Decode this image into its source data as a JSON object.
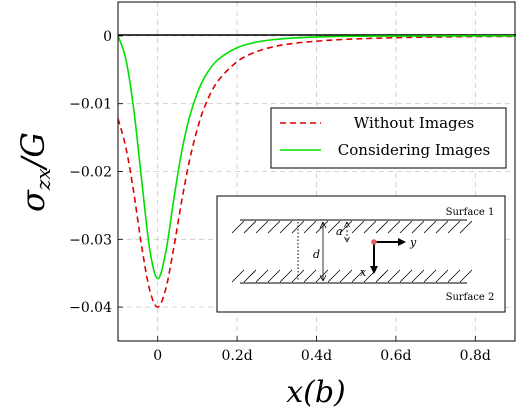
{
  "chart_data": {
    "type": "line",
    "xlabel": "x(b)",
    "ylabel": "σzx/G",
    "xlim": [
      -0.1,
      0.9
    ],
    "ylim": [
      -0.045,
      0.005
    ],
    "x_ticks": [
      {
        "value": 0,
        "label": "0"
      },
      {
        "value": 0.2,
        "label": "0.2d"
      },
      {
        "value": 0.4,
        "label": "0.4d"
      },
      {
        "value": 0.6,
        "label": "0.6d"
      },
      {
        "value": 0.8,
        "label": "0.8d"
      }
    ],
    "y_ticks": [
      {
        "value": 0,
        "label": "0"
      },
      {
        "value": -0.01,
        "label": "−0.01"
      },
      {
        "value": -0.02,
        "label": "−0.02"
      },
      {
        "value": -0.03,
        "label": "−0.03"
      },
      {
        "value": -0.04,
        "label": "−0.04"
      }
    ],
    "grid": true,
    "legend_position": "right",
    "series": [
      {
        "name": "Without Images",
        "color": "#e00000",
        "style": "dashed",
        "x": [
          -0.1,
          -0.08,
          -0.06,
          -0.04,
          -0.02,
          0,
          0.02,
          0.04,
          0.06,
          0.08,
          0.1,
          0.12,
          0.15,
          0.2,
          0.25,
          0.3,
          0.35,
          0.4,
          0.45,
          0.5,
          0.55,
          0.6,
          0.7,
          0.8,
          0.9
        ],
        "y": [
          -0.0122,
          -0.0165,
          -0.0232,
          -0.0312,
          -0.0375,
          -0.04,
          -0.0374,
          -0.0314,
          -0.0245,
          -0.0184,
          -0.0137,
          -0.0102,
          -0.0068,
          -0.0038,
          -0.0023,
          -0.0015,
          -0.00105,
          -0.00078,
          -0.00058,
          -0.00044,
          -0.00034,
          -0.00026,
          -0.00016,
          -0.0001,
          -7e-05
        ]
      },
      {
        "name": "Considering Images",
        "color": "#00e000",
        "style": "solid",
        "x": [
          -0.1,
          -0.08,
          -0.06,
          -0.04,
          -0.02,
          0,
          0.02,
          0.04,
          0.06,
          0.08,
          0.1,
          0.12,
          0.15,
          0.2,
          0.25,
          0.3,
          0.35,
          0.4,
          0.45,
          0.5,
          0.55,
          0.6,
          0.7,
          0.8,
          0.9
        ],
        "y": [
          0,
          -0.0035,
          -0.011,
          -0.0215,
          -0.0315,
          -0.0358,
          -0.032,
          -0.0243,
          -0.0172,
          -0.012,
          -0.0084,
          -0.0059,
          -0.0036,
          -0.00175,
          -0.0009,
          -0.0005,
          -0.00028,
          -0.00016,
          -9e-05,
          -5e-05,
          -3e-05,
          -2e-05,
          -1e-05,
          0,
          0
        ]
      }
    ],
    "inset": {
      "surface_top": "Surface 1",
      "surface_bottom": "Surface 2",
      "label_a": "a",
      "label_d": "d",
      "label_x": "x",
      "label_y": "y"
    }
  }
}
